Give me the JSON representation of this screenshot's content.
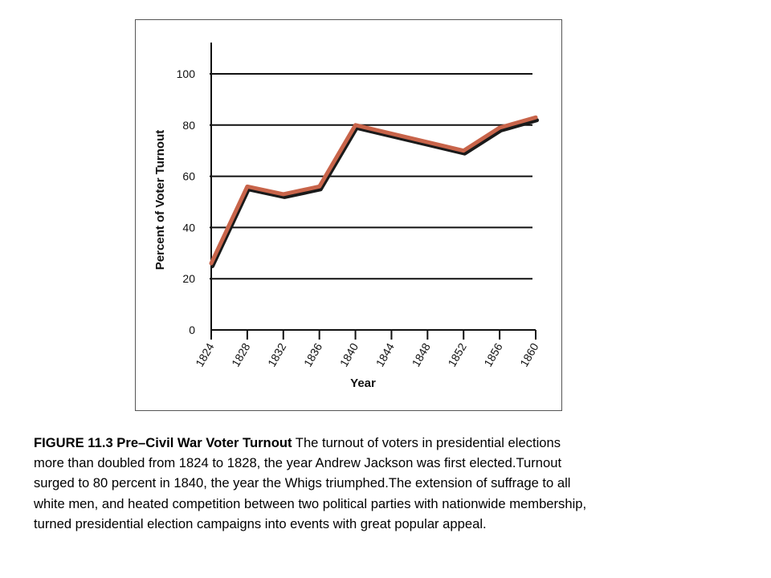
{
  "chart_data": {
    "type": "line",
    "title": "",
    "xlabel": "Year",
    "ylabel": "Percent of Voter Turnout",
    "x_ticks": [
      "1824",
      "1828",
      "1832",
      "1836",
      "1840",
      "1844",
      "1848",
      "1852",
      "1856",
      "1860"
    ],
    "y_ticks": [
      "0",
      "20",
      "40",
      "60",
      "80",
      "100"
    ],
    "xlim": [
      1824,
      1860
    ],
    "ylim": [
      0,
      110
    ],
    "grid": "horizontal",
    "series": [
      {
        "x": [
          1824,
          1828,
          1832,
          1836,
          1840,
          1852,
          1856,
          1860
        ],
        "y": [
          26,
          56,
          53,
          56,
          80,
          70,
          79,
          83
        ],
        "color": "#c8644a",
        "shadow_color": "#1a1a1a"
      }
    ]
  },
  "caption": {
    "label": "FIGURE 11.3 Pre–Civil War Voter Turnout",
    "lines": [
      " The turnout of voters in presidential elections",
      "more than doubled from 1824 to 1828, the year Andrew Jackson was first elected.Turnout",
      "surged to 80 percent in 1840, the year the Whigs triumphed.The extension of suffrage to all",
      "white men, and heated competition between two political parties with nationwide membership,",
      "turned presidential election campaigns into events with great popular appeal."
    ]
  }
}
